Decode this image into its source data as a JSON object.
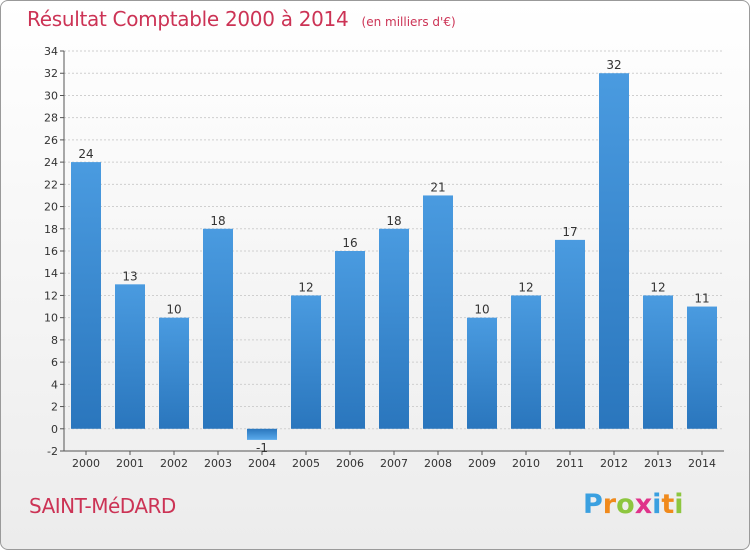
{
  "chart_data": {
    "type": "bar",
    "title": "Résultat Comptable 2000 à 2014",
    "subtitle": "(en milliers d'€)",
    "categories": [
      "2000",
      "2001",
      "2002",
      "2003",
      "2004",
      "2005",
      "2006",
      "2007",
      "2008",
      "2009",
      "2010",
      "2011",
      "2012",
      "2013",
      "2014"
    ],
    "values": [
      24,
      13,
      10,
      18,
      -1,
      12,
      16,
      18,
      21,
      10,
      12,
      17,
      32,
      12,
      11
    ],
    "ylim": [
      -2,
      34
    ],
    "yticks": [
      -2,
      0,
      2,
      4,
      6,
      8,
      10,
      12,
      14,
      16,
      18,
      20,
      22,
      24,
      26,
      28,
      30,
      32,
      34
    ],
    "grid": true,
    "bar_color": "#4a9be0",
    "bar_color_dark": "#2a76bd"
  },
  "commune": "SAINT-MéDARD",
  "logo": {
    "letters": [
      "P",
      "r",
      "o",
      "x",
      "i",
      "t",
      "i"
    ],
    "colors": [
      "#3aa0e0",
      "#f08a1c",
      "#8dc63f",
      "#e0338a",
      "#3aa0e0",
      "#f08a1c",
      "#8dc63f"
    ]
  }
}
